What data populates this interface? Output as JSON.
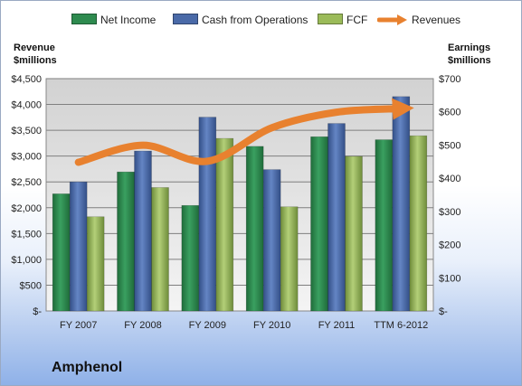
{
  "legend": {
    "net_income": "Net Income",
    "cfo": "Cash from Operations",
    "fcf": "FCF",
    "revenues": "Revenues"
  },
  "axis_titles": {
    "left_line1": "Revenue",
    "left_line2": "$millions",
    "right_line1": "Earnings",
    "right_line2": "$millions"
  },
  "company": "Amphenol",
  "colors": {
    "net_income": "#2e8b4f",
    "cfo": "#4a6aa8",
    "fcf": "#9bbb59",
    "revenues": "#e8812f"
  },
  "chart_data": {
    "type": "bar",
    "categories": [
      "FY 2007",
      "FY 2008",
      "FY 2009",
      "FY 2010",
      "FY 2011",
      "TTM 6-2012"
    ],
    "series": [
      {
        "name": "Net Income",
        "axis": "right",
        "values": [
          353,
          419,
          318,
          496,
          525,
          516
        ]
      },
      {
        "name": "Cash from Operations",
        "axis": "right",
        "values": [
          389,
          482,
          584,
          426,
          565,
          646
        ]
      },
      {
        "name": "FCF",
        "axis": "right",
        "values": [
          284,
          372,
          520,
          314,
          466,
          528
        ]
      },
      {
        "name": "Revenues",
        "type": "line",
        "axis": "left",
        "values": [
          2880,
          3210,
          2900,
          3550,
          3850,
          3920
        ]
      }
    ],
    "left_axis": {
      "ylim": [
        0,
        4500
      ],
      "ticks": [
        "$-",
        "$500",
        "$1,000",
        "$1,500",
        "$2,000",
        "$2,500",
        "$3,000",
        "$3,500",
        "$4,000",
        "$4,500"
      ]
    },
    "right_axis": {
      "ylim": [
        0,
        700
      ],
      "ticks": [
        "$-",
        "$100",
        "$200",
        "$300",
        "$400",
        "$500",
        "$600",
        "$700"
      ]
    },
    "grid": true,
    "legend_position": "top"
  }
}
